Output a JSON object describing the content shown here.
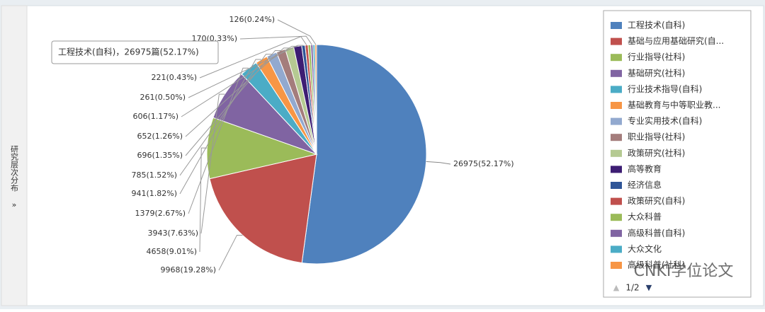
{
  "sidebar_title": "研究层次分布",
  "sidebar_toggle": "»",
  "chart_data": {
    "type": "pie",
    "categories": [
      "工程技术(自科)",
      "基础与应用基础研究(自...",
      "行业指导(社科)",
      "基础研究(社科)",
      "行业技术指导(自科)",
      "基础教育与中等职业教...",
      "专业实用技术(自科)",
      "职业指导(社科)",
      "政策研究(社科)",
      "高等教育",
      "经济信息",
      "政策研究(自科)",
      "大众科普",
      "高级科普(自科)",
      "大众文化",
      "高级科普(社科)"
    ],
    "values": [
      26975,
      9968,
      4658,
      3943,
      1379,
      941,
      785,
      696,
      652,
      606,
      261,
      221,
      200,
      170,
      150,
      126
    ],
    "value_labels": [
      "26975(52.17%)",
      "9968(19.28%)",
      "4658(9.01%)",
      "3943(7.63%)",
      "1379(2.67%)",
      "941(1.82%)",
      "785(1.52%)",
      "696(1.35%)",
      "652(1.26%)",
      "606(1.17%)",
      "261(0.50%)",
      "221(0.43%)",
      null,
      "170(0.33%)",
      null,
      "126(0.24%)"
    ],
    "colors": [
      "#4f81bd",
      "#c0504d",
      "#9bbb59",
      "#8064a2",
      "#4bacc6",
      "#f79646",
      "#92a9cf",
      "#a47d7c",
      "#b5ca92",
      "#3d1d73",
      "#2f5597",
      "#c0504d",
      "#9bbb59",
      "#8064a2",
      "#4bacc6",
      "#f79646"
    ],
    "tooltip": "工程技术(自科)，26975篇(52.17%)",
    "legend_page": "1/2",
    "watermark": "CNKI学位论文"
  }
}
